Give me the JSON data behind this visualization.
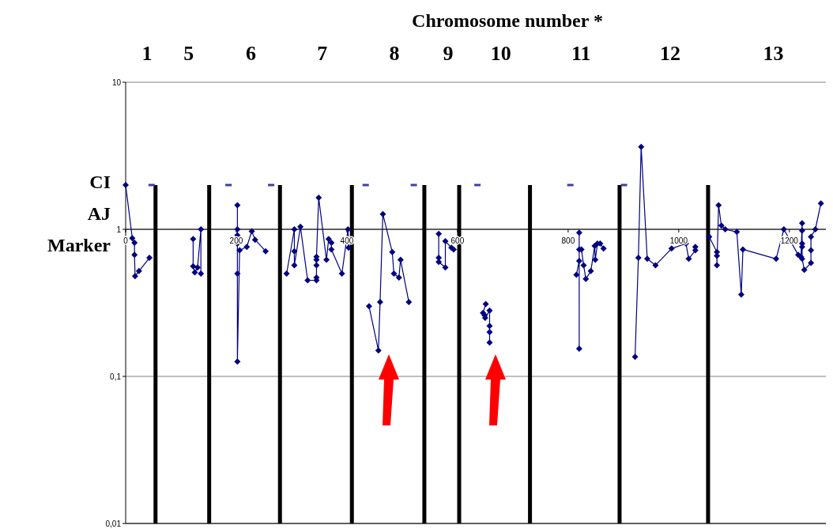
{
  "chart_data": {
    "type": "line",
    "title": "Chromosome number *",
    "ylabel": "CI AJ Marker",
    "log": "y",
    "grid": "y",
    "marker": "diamond",
    "line_style": "solid",
    "annotations": [
      "1",
      "5",
      "6",
      "7",
      "8",
      "9",
      "10",
      "11",
      "12",
      "13"
    ],
    "xlim": [
      0,
      1266
    ],
    "xticks": [
      0,
      200,
      400,
      600,
      800,
      1000,
      1200
    ],
    "ylim": [
      0.01,
      10
    ],
    "yticks": [
      {
        "value": 0.01,
        "label": "0,01"
      },
      {
        "value": 0.1,
        "label": "0,1"
      },
      1,
      10
    ],
    "ref_lines": [
      {
        "axis": "x",
        "value": 54,
        "color": "#000000"
      },
      {
        "axis": "x",
        "value": 151,
        "color": "#000000"
      },
      {
        "axis": "x",
        "value": 279,
        "color": "#000000"
      },
      {
        "axis": "x",
        "value": 409,
        "color": "#000000"
      },
      {
        "axis": "x",
        "value": 540,
        "color": "#000000"
      },
      {
        "axis": "x",
        "value": 603,
        "color": "#000000"
      },
      {
        "axis": "x",
        "value": 731,
        "color": "#000000"
      },
      {
        "axis": "x",
        "value": 893,
        "color": "#000000"
      },
      {
        "axis": "x",
        "value": 1053,
        "color": "#000000"
      }
    ],
    "series": [
      {
        "color": "#000080",
        "x": [
          0,
          12,
          16,
          16,
          17,
          24,
          43,
          80,
          122,
          122,
          125,
          130,
          136,
          136,
          170,
          202,
          202,
          202,
          202,
          202,
          202,
          206,
          219,
          228,
          234,
          253,
          270,
          291,
          305,
          305,
          305,
          316,
          329,
          345,
          345,
          345,
          345,
          345,
          349,
          363,
          367,
          372,
          372,
          391,
          402,
          403,
          425,
          440,
          457,
          460,
          465,
          482,
          485,
          494,
          497,
          512,
          540,
          566,
          566,
          566,
          578,
          578,
          589,
          593,
          620,
          651,
          646,
          649,
          650,
          658,
          658,
          658,
          658,
          700,
          815,
          820,
          820,
          820,
          820,
          824,
          828,
          832,
          841,
          848,
          849,
          853,
          858,
          864,
          900,
          921,
          927,
          932,
          943,
          958,
          987,
          1013,
          1018,
          1030,
          1030,
          1045,
          1055,
          1069,
          1069,
          1069,
          1072,
          1077,
          1084,
          1105,
          1113,
          1116,
          1176,
          1190,
          1216,
          1221,
          1223,
          1223,
          1223,
          1223,
          1223,
          1227,
          1239,
          1239,
          1239,
          1247,
          1257
        ],
        "values": [
          2.0,
          0.87,
          0.81,
          0.67,
          0.48,
          0.52,
          0.64,
          null,
          0.86,
          0.56,
          0.51,
          0.55,
          1.0,
          0.5,
          null,
          1.46,
          1.0,
          0.91,
          0.8,
          0.5,
          0.126,
          0.72,
          0.76,
          0.97,
          0.85,
          0.71,
          null,
          0.5,
          1.0,
          0.71,
          0.57,
          1.04,
          0.45,
          0.45,
          0.47,
          0.57,
          0.62,
          0.65,
          1.64,
          0.62,
          0.86,
          0.81,
          0.73,
          0.5,
          1.0,
          0.75,
          null,
          0.3,
          0.15,
          0.32,
          1.27,
          0.7,
          0.5,
          0.47,
          0.62,
          0.32,
          null,
          0.93,
          0.64,
          0.6,
          0.55,
          0.83,
          0.75,
          0.73,
          null,
          0.31,
          0.27,
          0.26,
          0.25,
          0.28,
          0.22,
          0.2,
          0.17,
          null,
          0.49,
          0.61,
          0.95,
          0.154,
          0.73,
          0.73,
          0.57,
          0.46,
          0.52,
          0.77,
          0.62,
          0.8,
          0.8,
          0.74,
          null,
          0.136,
          0.64,
          3.64,
          0.63,
          0.57,
          0.74,
          0.8,
          0.63,
          0.72,
          0.76,
          null,
          0.89,
          0.7,
          0.66,
          0.57,
          1.46,
          1.06,
          1.0,
          0.96,
          0.36,
          0.73,
          0.63,
          1.0,
          0.67,
          0.65,
          1.1,
          0.98,
          0.8,
          0.76,
          0.63,
          0.53,
          0.59,
          0.72,
          0.89,
          1.0,
          1.5
        ]
      },
      {
        "type": "scatter",
        "marker": "square",
        "color": "#4040a0",
        "x": [
          47,
          186,
          263,
          434,
          521,
          636,
          804,
          901
        ],
        "values": [
          2,
          2,
          2,
          2,
          2,
          2,
          2,
          2
        ]
      }
    ]
  }
}
